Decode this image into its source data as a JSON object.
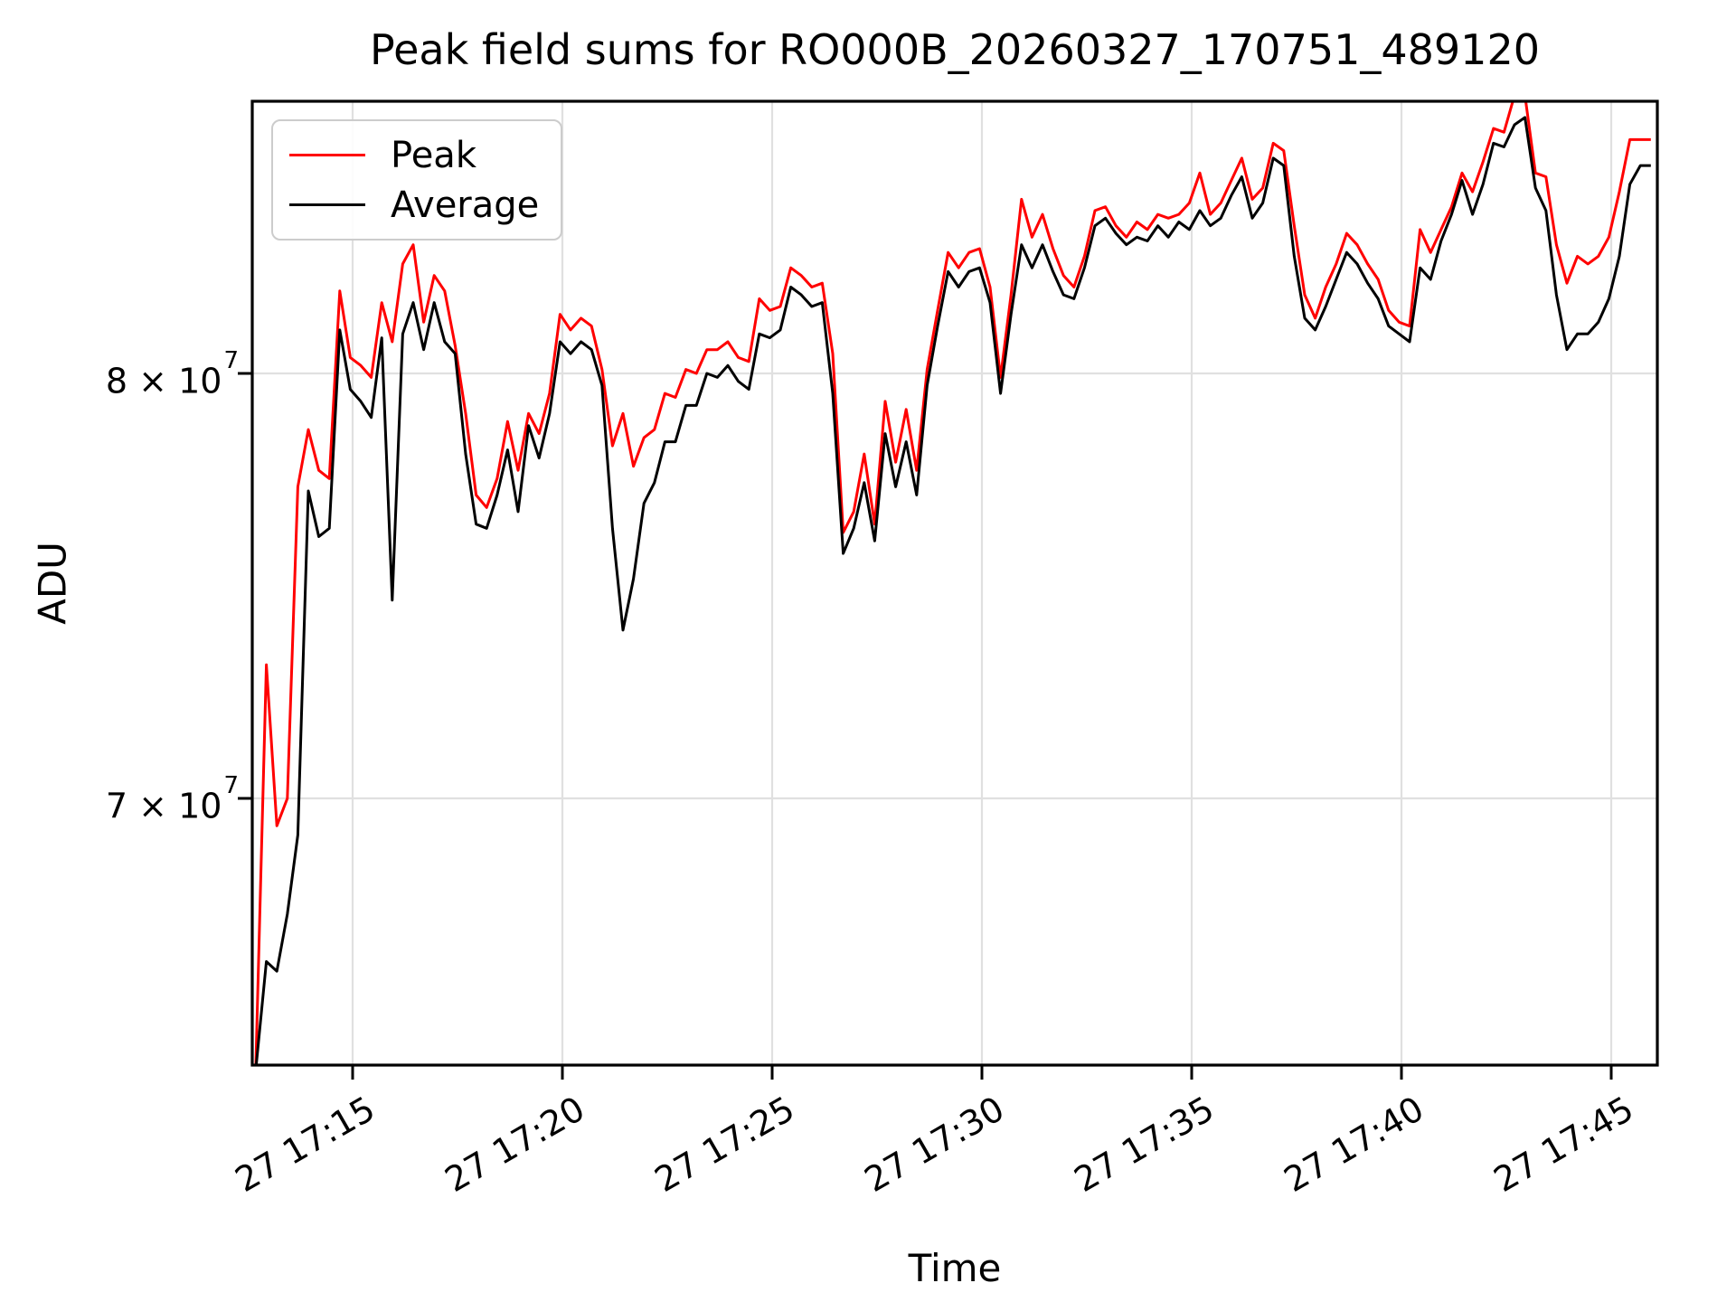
{
  "title": "Peak field sums for RO000B_20260327_170751_489120",
  "legend": {
    "entries": [
      {
        "label": "Peak",
        "color": "#ff0000"
      },
      {
        "label": "Average",
        "color": "#000000"
      }
    ]
  },
  "chart_data": {
    "type": "line",
    "title": "Peak field sums for RO000B_20260327_170751_489120",
    "xlabel": "Time",
    "ylabel": "ADU",
    "y_scale": "log",
    "grid": true,
    "legend_position": "upper left",
    "background": "#ffffff",
    "grid_color": "#e0e0e0",
    "ylim_ADU": [
      64300000,
      87400000
    ],
    "x_axis": {
      "start": "2026-03-27 17:12:40",
      "step_seconds": 15,
      "tick_labels": [
        "27 17:15",
        "27 17:20",
        "27 17:25",
        "27 17:30",
        "27 17:35",
        "27 17:40",
        "27 17:45"
      ]
    },
    "y_axis": {
      "tick_labels": [
        "8 × 10^7",
        "7 × 10^7"
      ],
      "tick_values_ADU": [
        80000000,
        70000000
      ]
    },
    "unit_scale_ADU": 10000000,
    "series": [
      {
        "name": "Peak",
        "color": "#ff0000",
        "values_1e7_ADU": [
          6.44,
          7.3,
          6.94,
          7.0,
          7.72,
          7.86,
          7.76,
          7.74,
          8.21,
          8.04,
          8.02,
          7.99,
          8.18,
          8.08,
          8.28,
          8.33,
          8.13,
          8.25,
          8.21,
          8.07,
          7.9,
          7.7,
          7.67,
          7.74,
          7.88,
          7.76,
          7.9,
          7.85,
          7.95,
          8.15,
          8.11,
          8.14,
          8.12,
          8.01,
          7.82,
          7.9,
          7.77,
          7.84,
          7.86,
          7.95,
          7.94,
          8.01,
          8.0,
          8.06,
          8.06,
          8.08,
          8.04,
          8.03,
          8.19,
          8.16,
          8.17,
          8.27,
          8.25,
          8.22,
          8.23,
          8.05,
          7.61,
          7.66,
          7.8,
          7.63,
          7.93,
          7.78,
          7.91,
          7.76,
          8.01,
          8.16,
          8.31,
          8.27,
          8.31,
          8.32,
          8.22,
          7.99,
          8.2,
          8.45,
          8.35,
          8.41,
          8.32,
          8.25,
          8.22,
          8.3,
          8.42,
          8.43,
          8.38,
          8.35,
          8.39,
          8.37,
          8.41,
          8.4,
          8.41,
          8.44,
          8.52,
          8.41,
          8.44,
          8.5,
          8.56,
          8.45,
          8.48,
          8.6,
          8.58,
          8.38,
          8.2,
          8.14,
          8.22,
          8.28,
          8.36,
          8.33,
          8.28,
          8.24,
          8.16,
          8.13,
          8.12,
          8.37,
          8.31,
          8.37,
          8.43,
          8.52,
          8.47,
          8.55,
          8.64,
          8.63,
          8.73,
          8.73,
          8.52,
          8.51,
          8.33,
          8.23,
          8.3,
          8.28,
          8.3,
          8.35,
          8.47,
          8.61,
          8.61,
          8.61
        ]
      },
      {
        "name": "Average",
        "color": "#000000",
        "values_1e7_ADU": [
          6.43,
          6.65,
          6.63,
          6.75,
          6.92,
          7.71,
          7.6,
          7.62,
          8.11,
          7.96,
          7.93,
          7.89,
          8.09,
          7.45,
          8.1,
          8.18,
          8.06,
          8.18,
          8.08,
          8.05,
          7.8,
          7.63,
          7.62,
          7.7,
          7.81,
          7.66,
          7.87,
          7.79,
          7.9,
          8.08,
          8.05,
          8.08,
          8.06,
          7.97,
          7.62,
          7.38,
          7.5,
          7.68,
          7.73,
          7.83,
          7.83,
          7.92,
          7.92,
          8.0,
          7.99,
          8.02,
          7.98,
          7.96,
          8.1,
          8.09,
          8.11,
          8.22,
          8.2,
          8.17,
          8.18,
          7.95,
          7.56,
          7.62,
          7.73,
          7.59,
          7.85,
          7.72,
          7.83,
          7.7,
          7.97,
          8.12,
          8.26,
          8.22,
          8.26,
          8.27,
          8.18,
          7.95,
          8.15,
          8.33,
          8.27,
          8.33,
          8.26,
          8.2,
          8.19,
          8.27,
          8.38,
          8.4,
          8.36,
          8.33,
          8.35,
          8.34,
          8.38,
          8.35,
          8.39,
          8.37,
          8.42,
          8.38,
          8.4,
          8.46,
          8.51,
          8.4,
          8.44,
          8.56,
          8.54,
          8.3,
          8.14,
          8.11,
          8.17,
          8.24,
          8.31,
          8.28,
          8.23,
          8.19,
          8.12,
          8.1,
          8.08,
          8.27,
          8.24,
          8.34,
          8.41,
          8.5,
          8.41,
          8.49,
          8.6,
          8.59,
          8.65,
          8.67,
          8.48,
          8.42,
          8.2,
          8.06,
          8.1,
          8.1,
          8.13,
          8.19,
          8.3,
          8.49,
          8.54,
          8.54
        ]
      }
    ]
  }
}
